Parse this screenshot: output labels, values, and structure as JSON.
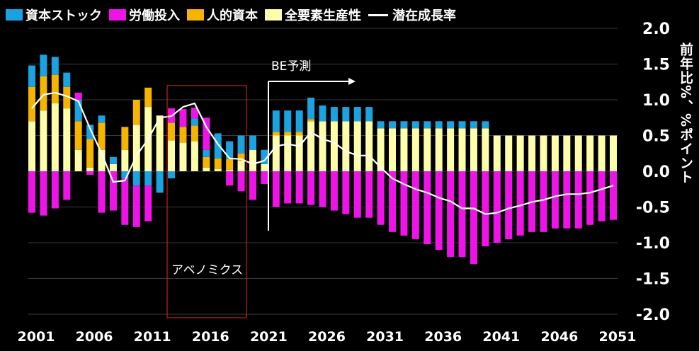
{
  "legend": {
    "items": [
      {
        "label": "資本ストック",
        "color": "#1aa3e0"
      },
      {
        "label": "労働投入",
        "color": "#ee14e8"
      },
      {
        "label": "人的資本",
        "color": "#f5b400"
      },
      {
        "label": "全要素生産性",
        "color": "#fdfdaa"
      }
    ],
    "line_label": "潜在成長率",
    "line_color": "#ffffff"
  },
  "annotations": {
    "be_forecast": "BE予測",
    "abenomics": "アベノミクス"
  },
  "chart_data": {
    "type": "bar",
    "stacked": true,
    "x_start": 2001,
    "x_end": 2051,
    "x_tick_labels": [
      "2001",
      "2006",
      "2011",
      "2016",
      "2021",
      "2026",
      "2031",
      "2036",
      "2041",
      "2046",
      "2051"
    ],
    "ylim": [
      -2.0,
      2.0
    ],
    "y_tick_labels": [
      "2.0",
      "1.5",
      "1.0",
      "0.5",
      "0.0",
      "-0.5",
      "-1.0",
      "-1.5",
      "-2.0"
    ],
    "ylabel": "前年比%、%ポイント",
    "grid": true,
    "legend_position": "top",
    "forecast_start": 2021,
    "abenomics_range": [
      2013,
      2019
    ],
    "years": [
      2001,
      2002,
      2003,
      2004,
      2005,
      2006,
      2007,
      2008,
      2009,
      2010,
      2011,
      2012,
      2013,
      2014,
      2015,
      2016,
      2017,
      2018,
      2019,
      2020,
      2021,
      2022,
      2023,
      2024,
      2025,
      2026,
      2027,
      2028,
      2029,
      2030,
      2031,
      2032,
      2033,
      2034,
      2035,
      2036,
      2037,
      2038,
      2039,
      2040,
      2041,
      2042,
      2043,
      2044,
      2045,
      2046,
      2047,
      2048,
      2049,
      2050,
      2051
    ],
    "series": [
      {
        "name": "全要素生産性",
        "values": [
          0.7,
          0.85,
          0.95,
          0.88,
          0.3,
          0.05,
          0.3,
          0.1,
          0.3,
          0.65,
          0.9,
          0.78,
          0.43,
          0.4,
          0.42,
          0.05,
          0.03,
          0.02,
          0.15,
          0.3,
          0.1,
          0.5,
          0.5,
          0.5,
          0.7,
          0.7,
          0.7,
          0.7,
          0.7,
          0.7,
          0.6,
          0.6,
          0.6,
          0.6,
          0.6,
          0.6,
          0.6,
          0.6,
          0.6,
          0.6,
          0.5,
          0.5,
          0.5,
          0.5,
          0.5,
          0.5,
          0.5,
          0.5,
          0.5,
          0.5,
          0.5
        ]
      },
      {
        "name": "人的資本",
        "values": [
          0.48,
          0.48,
          0.4,
          0.3,
          0.4,
          0.4,
          0.38,
          0.0,
          0.32,
          0.35,
          0.27,
          0.0,
          0.25,
          0.22,
          0.22,
          0.15,
          0.15,
          0.15,
          0.1,
          0.0,
          0.0,
          0.05,
          0.05,
          0.05,
          0.03,
          0.0,
          0.0,
          0.0,
          0.0,
          0.0,
          0.0,
          0.0,
          0.0,
          0.0,
          0.0,
          0.0,
          0.0,
          0.0,
          0.0,
          0.0,
          0.0,
          0.0,
          0.0,
          0.0,
          0.0,
          0.0,
          0.0,
          0.0,
          0.0,
          0.0,
          0.0
        ]
      },
      {
        "name": "資本ストック",
        "values": [
          0.3,
          0.3,
          0.25,
          0.2,
          0.3,
          0.2,
          0.1,
          0.1,
          -0.1,
          -0.2,
          -0.2,
          -0.3,
          -0.1,
          0.0,
          0.1,
          0.1,
          0.35,
          0.25,
          0.25,
          0.2,
          0.2,
          0.3,
          0.3,
          0.3,
          0.3,
          0.22,
          0.2,
          0.2,
          0.2,
          0.2,
          0.1,
          0.1,
          0.1,
          0.1,
          0.1,
          0.1,
          0.1,
          0.1,
          0.1,
          0.1,
          0.0,
          0.0,
          0.0,
          0.0,
          0.0,
          0.0,
          0.0,
          0.0,
          0.0,
          0.0,
          0.0
        ]
      },
      {
        "name": "労働投入",
        "values": [
          -0.58,
          -0.62,
          -0.52,
          -0.4,
          0.1,
          -0.05,
          -0.58,
          -0.55,
          -0.65,
          -0.58,
          -0.5,
          0.0,
          0.2,
          0.25,
          0.15,
          0.45,
          0.0,
          -0.2,
          -0.28,
          -0.4,
          -0.18,
          -0.5,
          -0.45,
          -0.45,
          -0.47,
          -0.5,
          -0.55,
          -0.6,
          -0.65,
          -0.65,
          -0.75,
          -0.85,
          -0.9,
          -0.95,
          -1.02,
          -1.1,
          -1.2,
          -1.2,
          -1.3,
          -1.05,
          -1.0,
          -0.95,
          -0.9,
          -0.85,
          -0.85,
          -0.8,
          -0.8,
          -0.8,
          -0.75,
          -0.7,
          -0.68
        ]
      }
    ],
    "line_series": {
      "name": "潜在成長率",
      "values": [
        0.88,
        1.07,
        1.1,
        1.05,
        0.98,
        0.6,
        0.25,
        -0.15,
        -0.13,
        0.22,
        0.45,
        0.75,
        0.77,
        0.9,
        0.95,
        0.62,
        0.38,
        0.18,
        0.17,
        0.1,
        0.15,
        0.35,
        0.38,
        0.35,
        0.55,
        0.45,
        0.4,
        0.28,
        0.22,
        0.22,
        0.05,
        -0.1,
        -0.18,
        -0.25,
        -0.3,
        -0.37,
        -0.42,
        -0.52,
        -0.52,
        -0.6,
        -0.58,
        -0.52,
        -0.48,
        -0.43,
        -0.4,
        -0.35,
        -0.32,
        -0.32,
        -0.3,
        -0.25,
        -0.2
      ]
    }
  }
}
